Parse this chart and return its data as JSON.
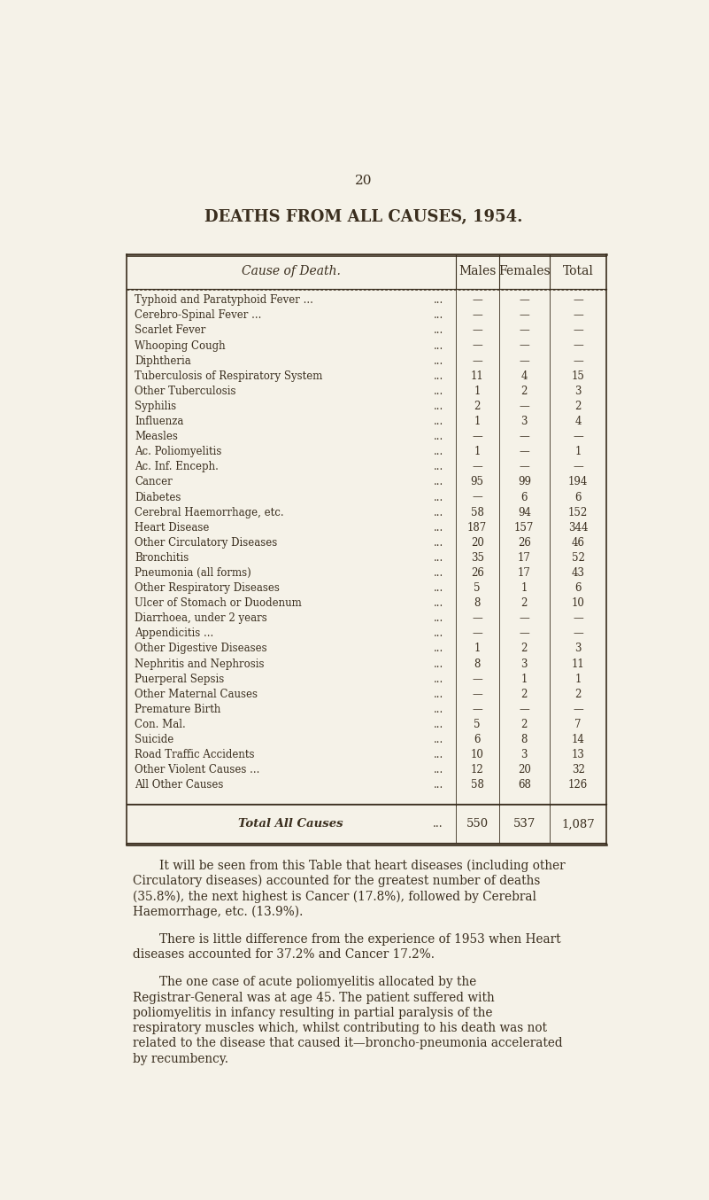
{
  "page_number": "20",
  "title": "DEATHS FROM ALL CAUSES, 1954.",
  "bg_color": "#f5f2e8",
  "text_color": "#3a2e1e",
  "header_cols": [
    "Cause of Death.",
    "Males",
    "Females",
    "Total"
  ],
  "rows": [
    [
      "Typhoid and Paratyphoid Fever ...",
      "...",
      "—",
      "—",
      "—"
    ],
    [
      "Cerebro-Spinal Fever ...",
      "...",
      "—",
      "—",
      "—"
    ],
    [
      "Scarlet Fever",
      "...",
      "—",
      "—",
      "—"
    ],
    [
      "Whooping Cough",
      "...",
      "—",
      "—",
      "—"
    ],
    [
      "Diphtheria",
      "...",
      "—",
      "—",
      "—"
    ],
    [
      "Tuberculosis of Respiratory System",
      "...",
      "11",
      "4",
      "15"
    ],
    [
      "Other Tuberculosis",
      "...",
      "1",
      "2",
      "3"
    ],
    [
      "Syphilis",
      "...",
      "2",
      "—",
      "2"
    ],
    [
      "Influenza",
      "...",
      "1",
      "3",
      "4"
    ],
    [
      "Measles",
      "...",
      "—",
      "—",
      "—"
    ],
    [
      "Ac. Poliomyelitis",
      "...",
      "1",
      "—",
      "1"
    ],
    [
      "Ac. Inf. Enceph.",
      "...",
      "—",
      "—",
      "—"
    ],
    [
      "Cancer",
      "...",
      "95",
      "99",
      "194"
    ],
    [
      "Diabetes",
      "...",
      "—",
      "6",
      "6"
    ],
    [
      "Cerebral Haemorrhage, etc.",
      "...",
      "58",
      "94",
      "152"
    ],
    [
      "Heart Disease",
      "...",
      "187",
      "157",
      "344"
    ],
    [
      "Other Circulatory Diseases",
      "...",
      "20",
      "26",
      "46"
    ],
    [
      "Bronchitis",
      "...",
      "35",
      "17",
      "52"
    ],
    [
      "Pneumonia (all forms)",
      "...",
      "26",
      "17",
      "43"
    ],
    [
      "Other Respiratory Diseases",
      "...",
      "5",
      "1",
      "6"
    ],
    [
      "Ulcer of Stomach or Duodenum",
      "...",
      "8",
      "2",
      "10"
    ],
    [
      "Diarrhoea, under 2 years",
      "...",
      "—",
      "—",
      "—"
    ],
    [
      "Appendicitis ...",
      "...",
      "—",
      "—",
      "—"
    ],
    [
      "Other Digestive Diseases",
      "...",
      "1",
      "2",
      "3"
    ],
    [
      "Nephritis and Nephrosis",
      "...",
      "8",
      "3",
      "11"
    ],
    [
      "Puerperal Sepsis",
      "...",
      "—",
      "1",
      "1"
    ],
    [
      "Other Maternal Causes",
      "...",
      "—",
      "2",
      "2"
    ],
    [
      "Premature Birth",
      "...",
      "—",
      "—",
      "—"
    ],
    [
      "Con. Mal.",
      "...",
      "5",
      "2",
      "7"
    ],
    [
      "Suicide",
      "...",
      "6",
      "8",
      "14"
    ],
    [
      "Road Traffic Accidents",
      "...",
      "10",
      "3",
      "13"
    ],
    [
      "Other Violent Causes ...",
      "...",
      "12",
      "20",
      "32"
    ],
    [
      "All Other Causes",
      "...",
      "58",
      "68",
      "126"
    ]
  ],
  "total_row": [
    "Total All Causes",
    "...",
    "550",
    "537",
    "1,087"
  ],
  "paragraph1": "It will be seen from this Table that heart diseases (including other Circulatory diseases) accounted for the greatest number of deaths (35.8%), the next highest is Cancer (17.8%), followed by Cerebral Haemorrhage, etc. (13.9%).",
  "paragraph2": "There is little difference from the experience of 1953 when Heart diseases accounted for 37.2% and Cancer 17.2%.",
  "paragraph3": "The one case of acute poliomyelitis allocated by the Registrar-General was at age 45.  The patient suffered with poliomyelitis in infancy resulting in partial paralysis of the respiratory muscles which, whilst contributing to his death was not related to the disease that caused it—broncho-pneumonia accelerated by recumbency."
}
